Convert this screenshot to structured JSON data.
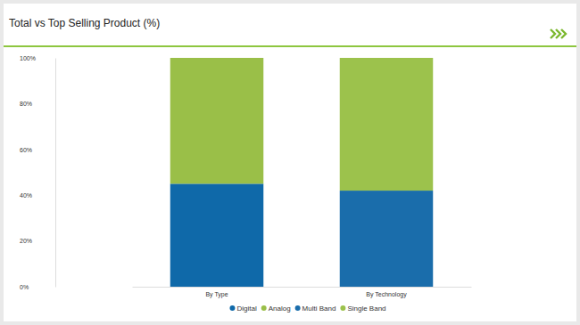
{
  "chart_data": {
    "type": "bar",
    "title": "Total vs Top Selling Product (%)",
    "stacked": true,
    "categories": [
      "By Type",
      "By Technology"
    ],
    "series": [
      {
        "name": "Digital",
        "color": "#0f69a9",
        "values": [
          45,
          null
        ]
      },
      {
        "name": "Analog",
        "color": "#9abf48",
        "values": [
          55,
          null
        ]
      },
      {
        "name": "Multi Band",
        "color": "#1a6dab",
        "values": [
          null,
          42
        ]
      },
      {
        "name": "Single Band",
        "color": "#9cc24c",
        "values": [
          null,
          58
        ]
      }
    ],
    "ylim": [
      0,
      100
    ],
    "yticks": [
      {
        "value": 0,
        "label": "0%"
      },
      {
        "value": 20,
        "label": "20%"
      },
      {
        "value": 40,
        "label": "40%"
      },
      {
        "value": 60,
        "label": "60%"
      },
      {
        "value": 80,
        "label": "80%"
      },
      {
        "value": 100,
        "label": "100%"
      }
    ],
    "grid": false,
    "legend": "bottom"
  }
}
